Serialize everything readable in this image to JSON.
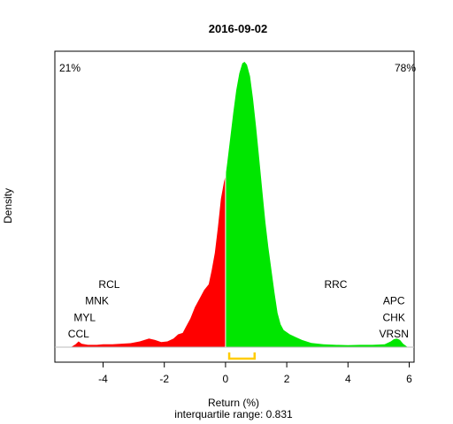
{
  "chart_data": {
    "type": "area",
    "title": "2016-09-02",
    "xlabel": "Return (%)",
    "subtitle": "interquartile range: 0.831",
    "ylabel": "Density",
    "xlim": [
      -5.6,
      6.2
    ],
    "x_ticks": [
      -4,
      -2,
      0,
      2,
      4,
      6
    ],
    "x_tick_labels": [
      "-4",
      "-2",
      "0",
      "2",
      "4",
      "6"
    ],
    "negative_share": "21%",
    "positive_share": "78%",
    "colors": {
      "negative": "#ff0000",
      "positive": "#00e600",
      "iqr": "#ffcc00",
      "negative_text": "#ff0000",
      "positive_text": "#008800"
    },
    "iqr": [
      0.12,
      0.95
    ],
    "density_max": 1.0,
    "density": [
      [
        -5.05,
        0.0
      ],
      [
        -4.9,
        0.01
      ],
      [
        -4.8,
        0.02
      ],
      [
        -4.7,
        0.012
      ],
      [
        -4.5,
        0.008
      ],
      [
        -4.2,
        0.008
      ],
      [
        -4.0,
        0.01
      ],
      [
        -3.7,
        0.01
      ],
      [
        -3.4,
        0.012
      ],
      [
        -3.1,
        0.014
      ],
      [
        -2.8,
        0.02
      ],
      [
        -2.5,
        0.03
      ],
      [
        -2.3,
        0.025
      ],
      [
        -2.1,
        0.018
      ],
      [
        -1.9,
        0.02
      ],
      [
        -1.7,
        0.03
      ],
      [
        -1.55,
        0.045
      ],
      [
        -1.4,
        0.05
      ],
      [
        -1.3,
        0.07
      ],
      [
        -1.15,
        0.1
      ],
      [
        -1.0,
        0.14
      ],
      [
        -0.85,
        0.17
      ],
      [
        -0.7,
        0.2
      ],
      [
        -0.55,
        0.22
      ],
      [
        -0.45,
        0.27
      ],
      [
        -0.35,
        0.33
      ],
      [
        -0.25,
        0.42
      ],
      [
        -0.15,
        0.52
      ],
      [
        -0.05,
        0.58
      ],
      [
        0.0,
        0.6
      ],
      [
        0.05,
        0.64
      ],
      [
        0.15,
        0.73
      ],
      [
        0.25,
        0.82
      ],
      [
        0.35,
        0.9
      ],
      [
        0.45,
        0.96
      ],
      [
        0.55,
        0.995
      ],
      [
        0.62,
        1.0
      ],
      [
        0.7,
        0.99
      ],
      [
        0.8,
        0.95
      ],
      [
        0.9,
        0.87
      ],
      [
        1.0,
        0.77
      ],
      [
        1.1,
        0.66
      ],
      [
        1.2,
        0.55
      ],
      [
        1.3,
        0.44
      ],
      [
        1.4,
        0.35
      ],
      [
        1.5,
        0.27
      ],
      [
        1.6,
        0.19
      ],
      [
        1.7,
        0.12
      ],
      [
        1.8,
        0.08
      ],
      [
        1.9,
        0.06
      ],
      [
        2.1,
        0.045
      ],
      [
        2.3,
        0.035
      ],
      [
        2.5,
        0.025
      ],
      [
        2.8,
        0.015
      ],
      [
        3.2,
        0.01
      ],
      [
        3.6,
        0.008
      ],
      [
        4.0,
        0.007
      ],
      [
        4.4,
        0.008
      ],
      [
        4.8,
        0.008
      ],
      [
        5.2,
        0.01
      ],
      [
        5.4,
        0.02
      ],
      [
        5.5,
        0.028
      ],
      [
        5.6,
        0.03
      ],
      [
        5.7,
        0.025
      ],
      [
        5.8,
        0.012
      ],
      [
        5.95,
        0.0
      ]
    ],
    "annotations": [
      {
        "text": "RCL",
        "x": -3.8,
        "row": 4
      },
      {
        "text": "MNK",
        "x": -4.2,
        "row": 3
      },
      {
        "text": "MYL",
        "x": -4.6,
        "row": 2
      },
      {
        "text": "CCL",
        "x": -4.8,
        "row": 1
      },
      {
        "text": "RRC",
        "x": 3.6,
        "row": 4
      },
      {
        "text": "APC",
        "x": 5.5,
        "row": 3
      },
      {
        "text": "CHK",
        "x": 5.5,
        "row": 2
      },
      {
        "text": "VRSN",
        "x": 5.5,
        "row": 1
      }
    ]
  }
}
